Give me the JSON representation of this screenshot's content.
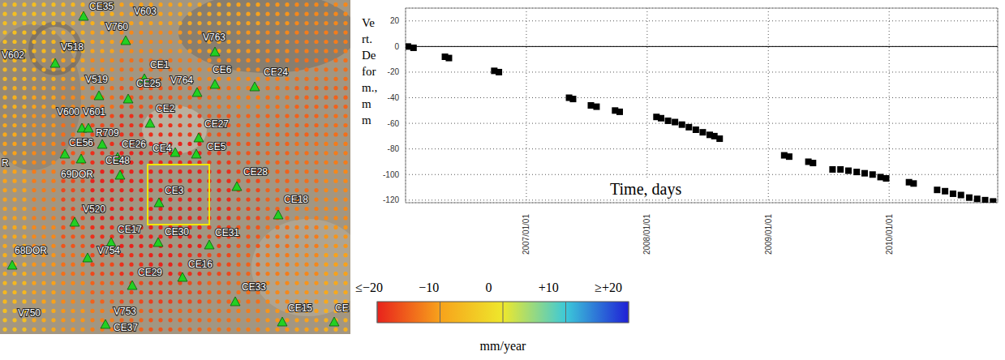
{
  "map": {
    "stations": [
      "CE35",
      "V603",
      "V760",
      "V763",
      "V602",
      "V518",
      "CE1",
      "CE6",
      "CE24",
      "V519",
      "CE25",
      "V764",
      "CE2",
      "V600",
      "V601",
      "R709",
      "CE27",
      "CE56",
      "CE26",
      "CE4",
      "CE5",
      "CE48",
      "69DOR",
      "CE28",
      "CE3",
      "CE18",
      "R",
      "V520",
      "CE17",
      "CE30",
      "CE31",
      "68DOR",
      "V754",
      "CE29",
      "CE16",
      "CE33",
      "CE15",
      "CE",
      "V750",
      "V753",
      "CE37"
    ],
    "rate_grid": [
      [
        -6,
        -6,
        -7,
        -8,
        -10,
        -10,
        -9,
        -9,
        -10,
        -11,
        -12,
        -12
      ],
      [
        -6,
        -7,
        -8,
        -10,
        -12,
        -12,
        -11,
        -10,
        -11,
        -12,
        -13,
        -13
      ],
      [
        -7,
        -8,
        -10,
        -12,
        -14,
        -14,
        -13,
        -12,
        -12,
        -13,
        -14,
        -14
      ],
      [
        -8,
        -10,
        -12,
        -14,
        -16,
        -16,
        -15,
        -14,
        -13,
        -14,
        -15,
        -15
      ],
      [
        -9,
        -11,
        -14,
        -17,
        -19,
        -19,
        -18,
        -16,
        -15,
        -15,
        -15,
        -14
      ],
      [
        -10,
        -12,
        -16,
        -19,
        -20,
        -20,
        -20,
        -18,
        -16,
        -15,
        -14,
        -13
      ],
      [
        -10,
        -13,
        -17,
        -20,
        -20,
        -20,
        -20,
        -19,
        -17,
        -15,
        -14,
        -12
      ],
      [
        -10,
        -13,
        -17,
        -20,
        -20,
        -20,
        -20,
        -19,
        -17,
        -15,
        -13,
        -12
      ],
      [
        -9,
        -12,
        -16,
        -19,
        -20,
        -20,
        -20,
        -18,
        -16,
        -14,
        -13,
        -11
      ],
      [
        -8,
        -11,
        -14,
        -17,
        -19,
        -20,
        -19,
        -17,
        -15,
        -13,
        -12,
        -10
      ],
      [
        -7,
        -10,
        -12,
        -15,
        -17,
        -18,
        -17,
        -15,
        -14,
        -12,
        -11,
        -9
      ],
      [
        -6,
        -9,
        -11,
        -13,
        -15,
        -16,
        -15,
        -14,
        -13,
        -11,
        -10,
        -8
      ]
    ]
  },
  "colorbar": {
    "range": [
      -20,
      20
    ],
    "ticks": [
      {
        "value": -20,
        "label": "≤−20"
      },
      {
        "value": -10,
        "label": "−10"
      },
      0,
      {
        "value": 10,
        "label": "+10"
      },
      {
        "value": 20,
        "label": "≥+20"
      }
    ],
    "colors": [
      "#e8221c",
      "#f7a21b",
      "#eee82c",
      "#3cc9d9",
      "#1f1fd6"
    ],
    "label": "mm/year"
  },
  "chart_data": {
    "type": "scatter",
    "xlabel": "Time, days",
    "ylabel": "Vert. Deform., mm",
    "x": [
      "2006/01/08",
      "2006/01/25",
      "2006/04/30",
      "2006/05/12",
      "2006/09/26",
      "2006/10/10",
      "2007/05/10",
      "2007/05/22",
      "2007/07/15",
      "2007/08/01",
      "2007/09/26",
      "2007/10/10",
      "2008/01/29",
      "2008/02/12",
      "2008/03/04",
      "2008/03/25",
      "2008/04/15",
      "2008/05/06",
      "2008/05/27",
      "2008/06/17",
      "2008/07/08",
      "2008/07/22",
      "2008/08/07",
      "2009/02/18",
      "2009/03/05",
      "2009/05/02",
      "2009/05/16",
      "2009/07/14",
      "2009/08/07",
      "2009/08/31",
      "2009/09/25",
      "2009/10/19",
      "2009/11/12",
      "2009/12/06",
      "2009/12/23",
      "2010/03/02",
      "2010/03/16",
      "2010/05/26",
      "2010/06/19",
      "2010/07/13",
      "2010/08/06",
      "2010/08/31",
      "2010/09/24",
      "2010/10/18",
      "2010/11/11"
    ],
    "values": [
      0,
      -1,
      -8,
      -9,
      -19,
      -20,
      -40,
      -41,
      -46,
      -47,
      -50,
      -51,
      -55,
      -56,
      -58,
      -59,
      -61,
      -63,
      -65,
      -67,
      -69,
      -70,
      -72,
      -85,
      -86,
      -90,
      -91,
      -96,
      -96,
      -97,
      -98,
      -99,
      -100,
      -102,
      -103,
      -106,
      -107,
      -112,
      -113,
      -115,
      -116,
      -118,
      -119,
      -120,
      -121
    ],
    "xlim": [
      "2006/01/01",
      "2010/11/25"
    ],
    "xticks": [
      "2007/01/01",
      "2008/01/01",
      "2009/01/01",
      "2010/01/01"
    ],
    "ylim": [
      -122,
      30
    ],
    "yticks": [
      20,
      0,
      -20,
      -40,
      -60,
      -80,
      -100,
      -120
    ],
    "baseline": 0,
    "color": "#000000",
    "marker": "square",
    "grid": true
  }
}
